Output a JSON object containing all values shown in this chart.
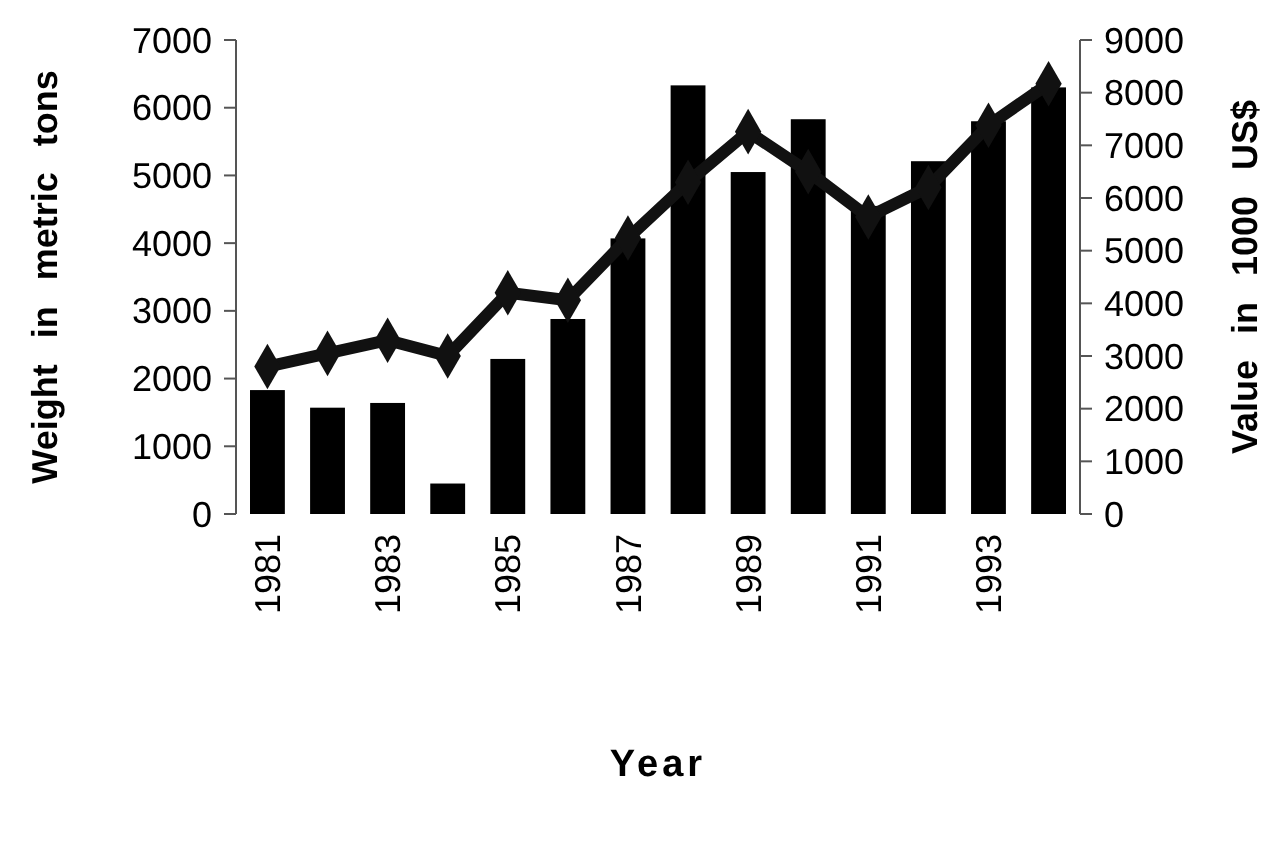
{
  "chart_data": {
    "type": "bar",
    "xlabel": "Year",
    "ylabel": "Weight in metric tons",
    "y2label": "Value in 1000 US$",
    "categories": [
      "1981",
      null,
      "1983",
      null,
      "1985",
      null,
      "1987",
      null,
      "1989",
      null,
      "1991",
      null,
      "1993",
      null
    ],
    "series": [
      {
        "color": "#000000",
        "values": [
          1830,
          1570,
          1640,
          450,
          2290,
          2880,
          4070,
          6330,
          5050,
          5830,
          4550,
          5210,
          5800,
          6300
        ]
      },
      {
        "type": "line",
        "axis": "y2",
        "color": "#111111",
        "marker": "diamond",
        "line_style": "solid",
        "values": [
          2800,
          3050,
          3300,
          3000,
          4200,
          4060,
          5240,
          6300,
          7260,
          6500,
          5640,
          6200,
          7380,
          8170
        ]
      }
    ],
    "ylim": [
      0,
      7000
    ],
    "yticks": [
      0,
      1000,
      2000,
      3000,
      4000,
      5000,
      6000,
      7000
    ],
    "y2lim": [
      0,
      9000
    ],
    "y2ticks": [
      0,
      1000,
      2000,
      3000,
      4000,
      5000,
      6000,
      7000,
      8000,
      9000
    ],
    "grid": false
  }
}
